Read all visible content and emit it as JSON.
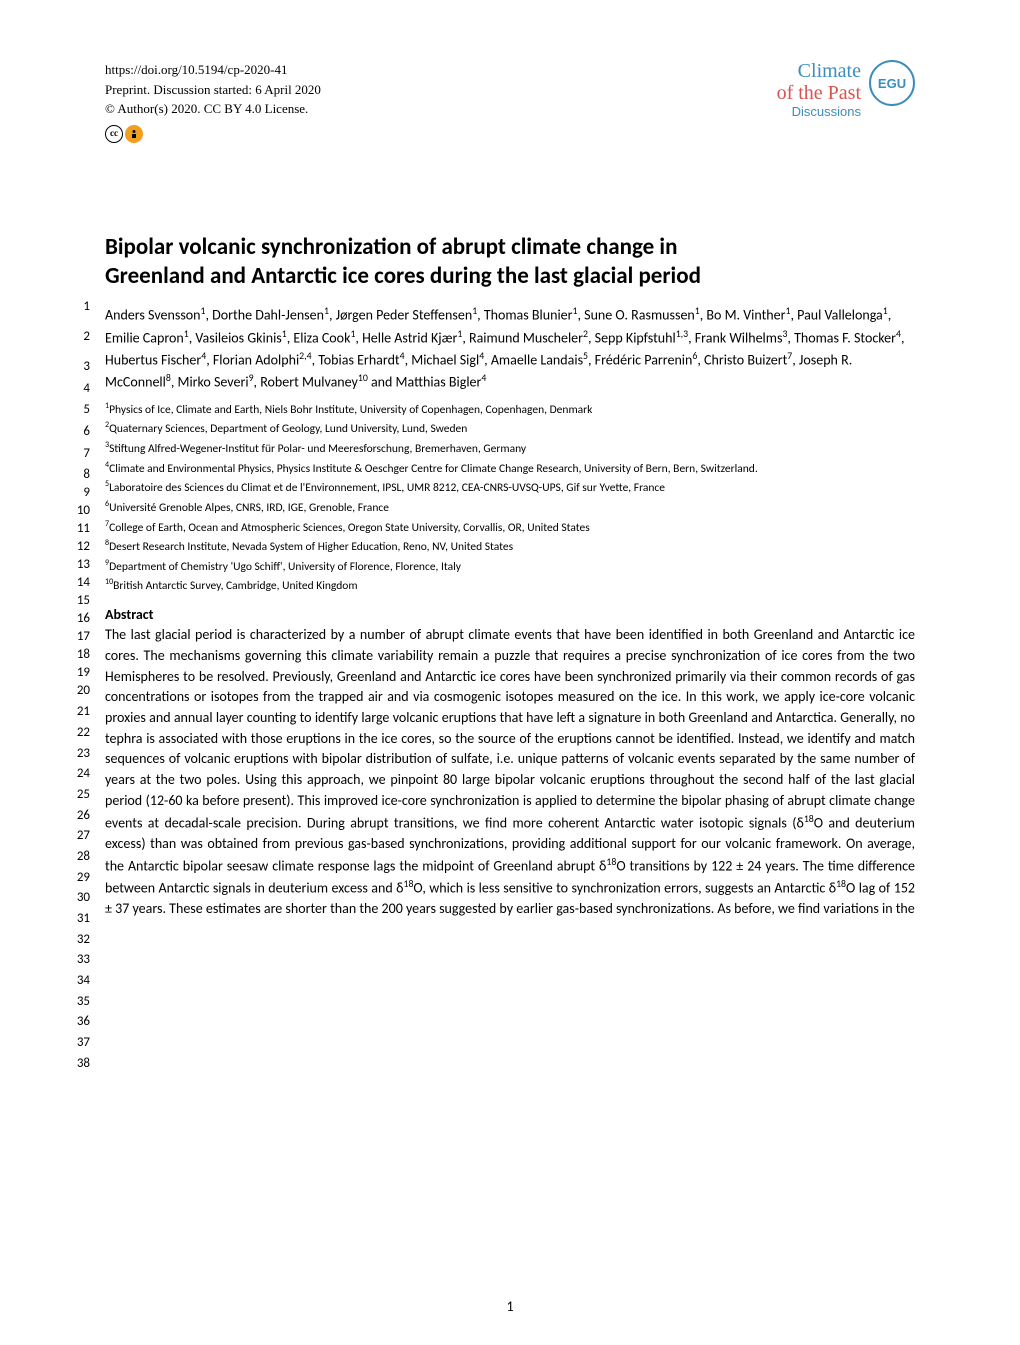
{
  "header": {
    "doi": "https://doi.org/10.5194/cp-2020-41",
    "preprint_line": "Preprint. Discussion started: 6 April 2020",
    "copyright_line": "© Author(s) 2020. CC BY 4.0 License.",
    "journal_line1": "Climate",
    "journal_line2": "of the Past",
    "journal_disc": "Discussions",
    "egu": "EGU",
    "open_access": "Open Access"
  },
  "title": {
    "line1": "Bipolar volcanic synchronization of abrupt climate change in",
    "line2": "Greenland and Antarctic ice cores during the last glacial period"
  },
  "authors_html": "Anders Svensson<sup>1</sup>, Dorthe Dahl-Jensen<sup>1</sup>, Jørgen Peder Steffensen<sup>1</sup>, Thomas Blunier<sup>1</sup>, Sune O. Rasmussen<sup>1</sup>, Bo M. Vinther<sup>1</sup>, Paul Vallelonga<sup>1</sup>, Emilie Capron<sup>1</sup>, Vasileios Gkinis<sup>1</sup>, Eliza Cook<sup>1</sup>, Helle Astrid Kjær<sup>1</sup>, Raimund Muscheler<sup>2</sup>, Sepp Kipfstuhl<sup>1,3</sup>, Frank Wilhelms<sup>3</sup>, Thomas F. Stocker<sup>4</sup>, Hubertus Fischer<sup>4</sup>, Florian Adolphi<sup>2,4</sup>, Tobias Erhardt<sup>4</sup>, Michael Sigl<sup>4</sup>, Amaelle Landais<sup>5</sup>, Frédéric Parrenin<sup>6</sup>, Christo Buizert<sup>7</sup>, Joseph R. McConnell<sup>8</sup>, Mirko Severi<sup>9</sup>, Robert Mulvaney<sup>10</sup> and Matthias Bigler<sup>4</sup>",
  "affiliations": [
    "<sup>1</sup>Physics of Ice, Climate and Earth, Niels Bohr Institute, University of Copenhagen, Copenhagen, Denmark",
    "<sup>2</sup>Quaternary Sciences, Department of Geology, Lund University, Lund, Sweden",
    "<sup>3</sup>Stiftung Alfred-Wegener-Institut für Polar- und Meeresforschung, Bremerhaven, Germany",
    "<sup>4</sup>Climate and Environmental Physics, Physics Institute & Oeschger Centre for Climate Change Research, University of Bern, Bern, Switzerland.",
    "<sup>5</sup>Laboratoire des Sciences du Climat et de l'Environnement, IPSL, UMR 8212, CEA-CNRS-UVSQ-UPS, Gif sur Yvette, France",
    "<sup>6</sup>Université Grenoble Alpes, CNRS, IRD, IGE, Grenoble, France",
    "<sup>7</sup>College of Earth, Ocean and Atmospheric Sciences, Oregon State University, Corvallis, OR, United States",
    "<sup>8</sup>Desert Research Institute, Nevada System of Higher Education, Reno, NV, United States",
    "<sup>9</sup>Department of Chemistry 'Ugo Schiff', University of Florence, Florence, Italy",
    "<sup>10</sup>British Antarctic Survey, Cambridge, United Kingdom"
  ],
  "abstract": {
    "heading": "Abstract",
    "body": "The last glacial period is characterized by a number of abrupt climate events that have been identified in both Greenland and Antarctic ice cores. The mechanisms governing this climate variability remain a puzzle that requires a precise synchronization of ice cores from the two Hemispheres to be resolved. Previously, Greenland and Antarctic ice cores have been synchronized primarily via their common records of gas concentrations or isotopes from the trapped air and via cosmogenic isotopes measured on the ice. In this work, we apply ice-core volcanic proxies and annual layer counting to identify large volcanic eruptions that have left a signature in both Greenland and Antarctica. Generally, no tephra is associated with those eruptions in the ice cores, so the source of the eruptions cannot be identified. Instead, we identify and match sequences of volcanic eruptions with bipolar distribution of sulfate, i.e. unique patterns of volcanic events separated by the same number of years at the two poles. Using this approach, we pinpoint 80 large bipolar volcanic eruptions throughout the second half of the last glacial period (12-60 ka before present). This improved ice-core synchronization is applied to determine the bipolar phasing of abrupt climate change events at decadal-scale precision. During abrupt transitions, we find more coherent Antarctic water isotopic signals (δ<sup>18</sup>O and deuterium excess) than was obtained from previous gas-based synchronizations, providing additional support for our volcanic framework. On average, the Antarctic bipolar seesaw climate response lags the midpoint of Greenland abrupt δ<sup>18</sup>O transitions by 122 ± 24 years. The time difference between Antarctic signals in deuterium excess and δ<sup>18</sup>O, which is less sensitive to synchronization errors, suggests an Antarctic δ<sup>18</sup>O lag of 152 ± 37 years. These estimates are shorter than the 200 years suggested by earlier gas-based synchronizations. As before, we find variations in the"
  },
  "line_numbers": {
    "start": 1,
    "end": 38
  },
  "page_number": "1",
  "colors": {
    "blue": "#3c8dbc",
    "red": "#d9534f",
    "text": "#000000",
    "bg": "#ffffff"
  }
}
